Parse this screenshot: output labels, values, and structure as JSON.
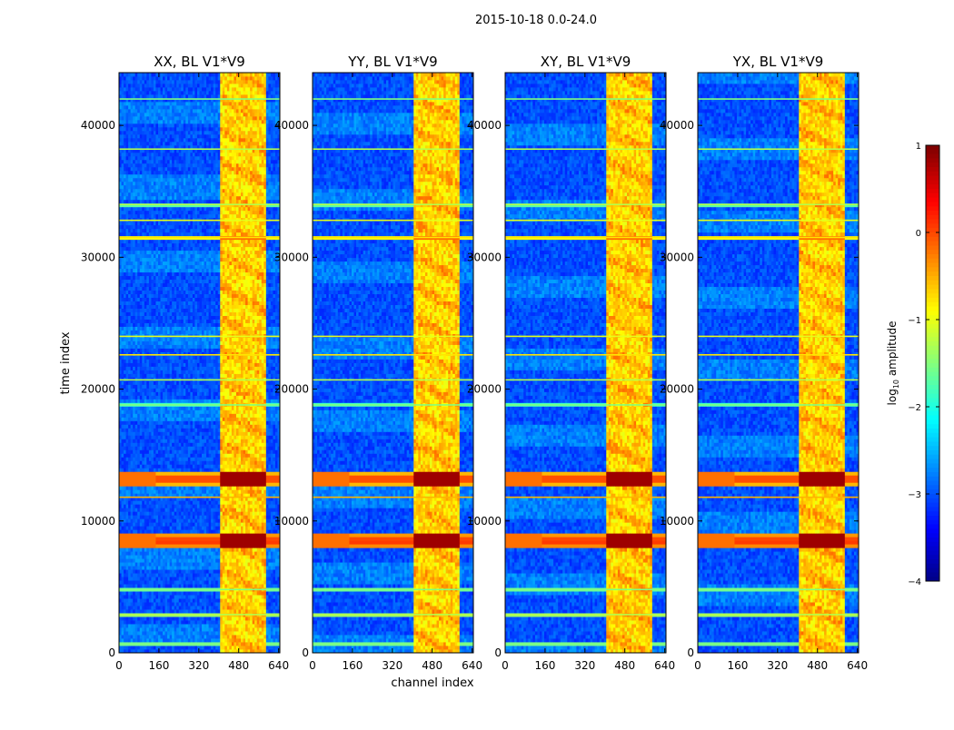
{
  "chart_data": {
    "type": "heatmap",
    "title": "2015-10-18 0.0-24.0",
    "xlabel": "channel index",
    "ylabel": "time index",
    "xlim": [
      0,
      645
    ],
    "ylim": [
      0,
      44000
    ],
    "xticks": [
      0,
      160,
      320,
      480,
      640
    ],
    "yticks": [
      0,
      10000,
      20000,
      30000,
      40000
    ],
    "panels": [
      {
        "title": "XX, BL V1*V9",
        "y_row_slice": 5,
        "y_row_slice_extra": null
      },
      {
        "title": "YY, BL V1*V9",
        "y_row_slice": 5,
        "y_row_slice_extra": null
      },
      {
        "title": "XY, BL V1*V9",
        "y_row_slice": 5,
        "y_row_slice_extra": null
      },
      {
        "title": "YX, BL V1*V9",
        "y_row_slice": 5,
        "y_row_slice_extra": null
      }
    ],
    "colorbar": {
      "label": "log10 amplitude",
      "label_base": "log",
      "label_sub": "10",
      "label_rest": " amplitude",
      "min": -4,
      "max": 1,
      "ticks": [
        1,
        0,
        -1,
        -2,
        -3,
        -4
      ],
      "tick_labels": [
        "1",
        "0",
        "−1",
        "−2",
        "−3",
        "−4"
      ],
      "colormap": "jet"
    },
    "features": {
      "bright_channel_band": [
        405,
        590
      ],
      "strong_time_bands": [
        {
          "center": 8500,
          "halfwidth": 600,
          "level": 0.85
        },
        {
          "center": 13200,
          "halfwidth": 450,
          "level": 0.85
        },
        {
          "center": 11800,
          "halfwidth": 80,
          "level": 0.7
        },
        {
          "center": 22600,
          "halfwidth": 80,
          "level": 0.65
        },
        {
          "center": 24000,
          "halfwidth": 60,
          "level": 0.6
        },
        {
          "center": 31500,
          "halfwidth": 70,
          "level": 0.65
        },
        {
          "center": 32800,
          "halfwidth": 60,
          "level": 0.6
        },
        {
          "center": 34000,
          "halfwidth": 50,
          "level": 0.55
        },
        {
          "center": 38200,
          "halfwidth": 50,
          "level": 0.55
        },
        {
          "center": 20700,
          "halfwidth": 60,
          "level": 0.55
        },
        {
          "center": 18800,
          "halfwidth": 60,
          "level": 0.5
        },
        {
          "center": 700,
          "halfwidth": 250,
          "level": 0.5
        },
        {
          "center": 2900,
          "halfwidth": 60,
          "level": 0.55
        },
        {
          "center": 4800,
          "halfwidth": 60,
          "level": 0.5
        },
        {
          "center": 42000,
          "halfwidth": 60,
          "level": 0.5
        }
      ]
    }
  }
}
